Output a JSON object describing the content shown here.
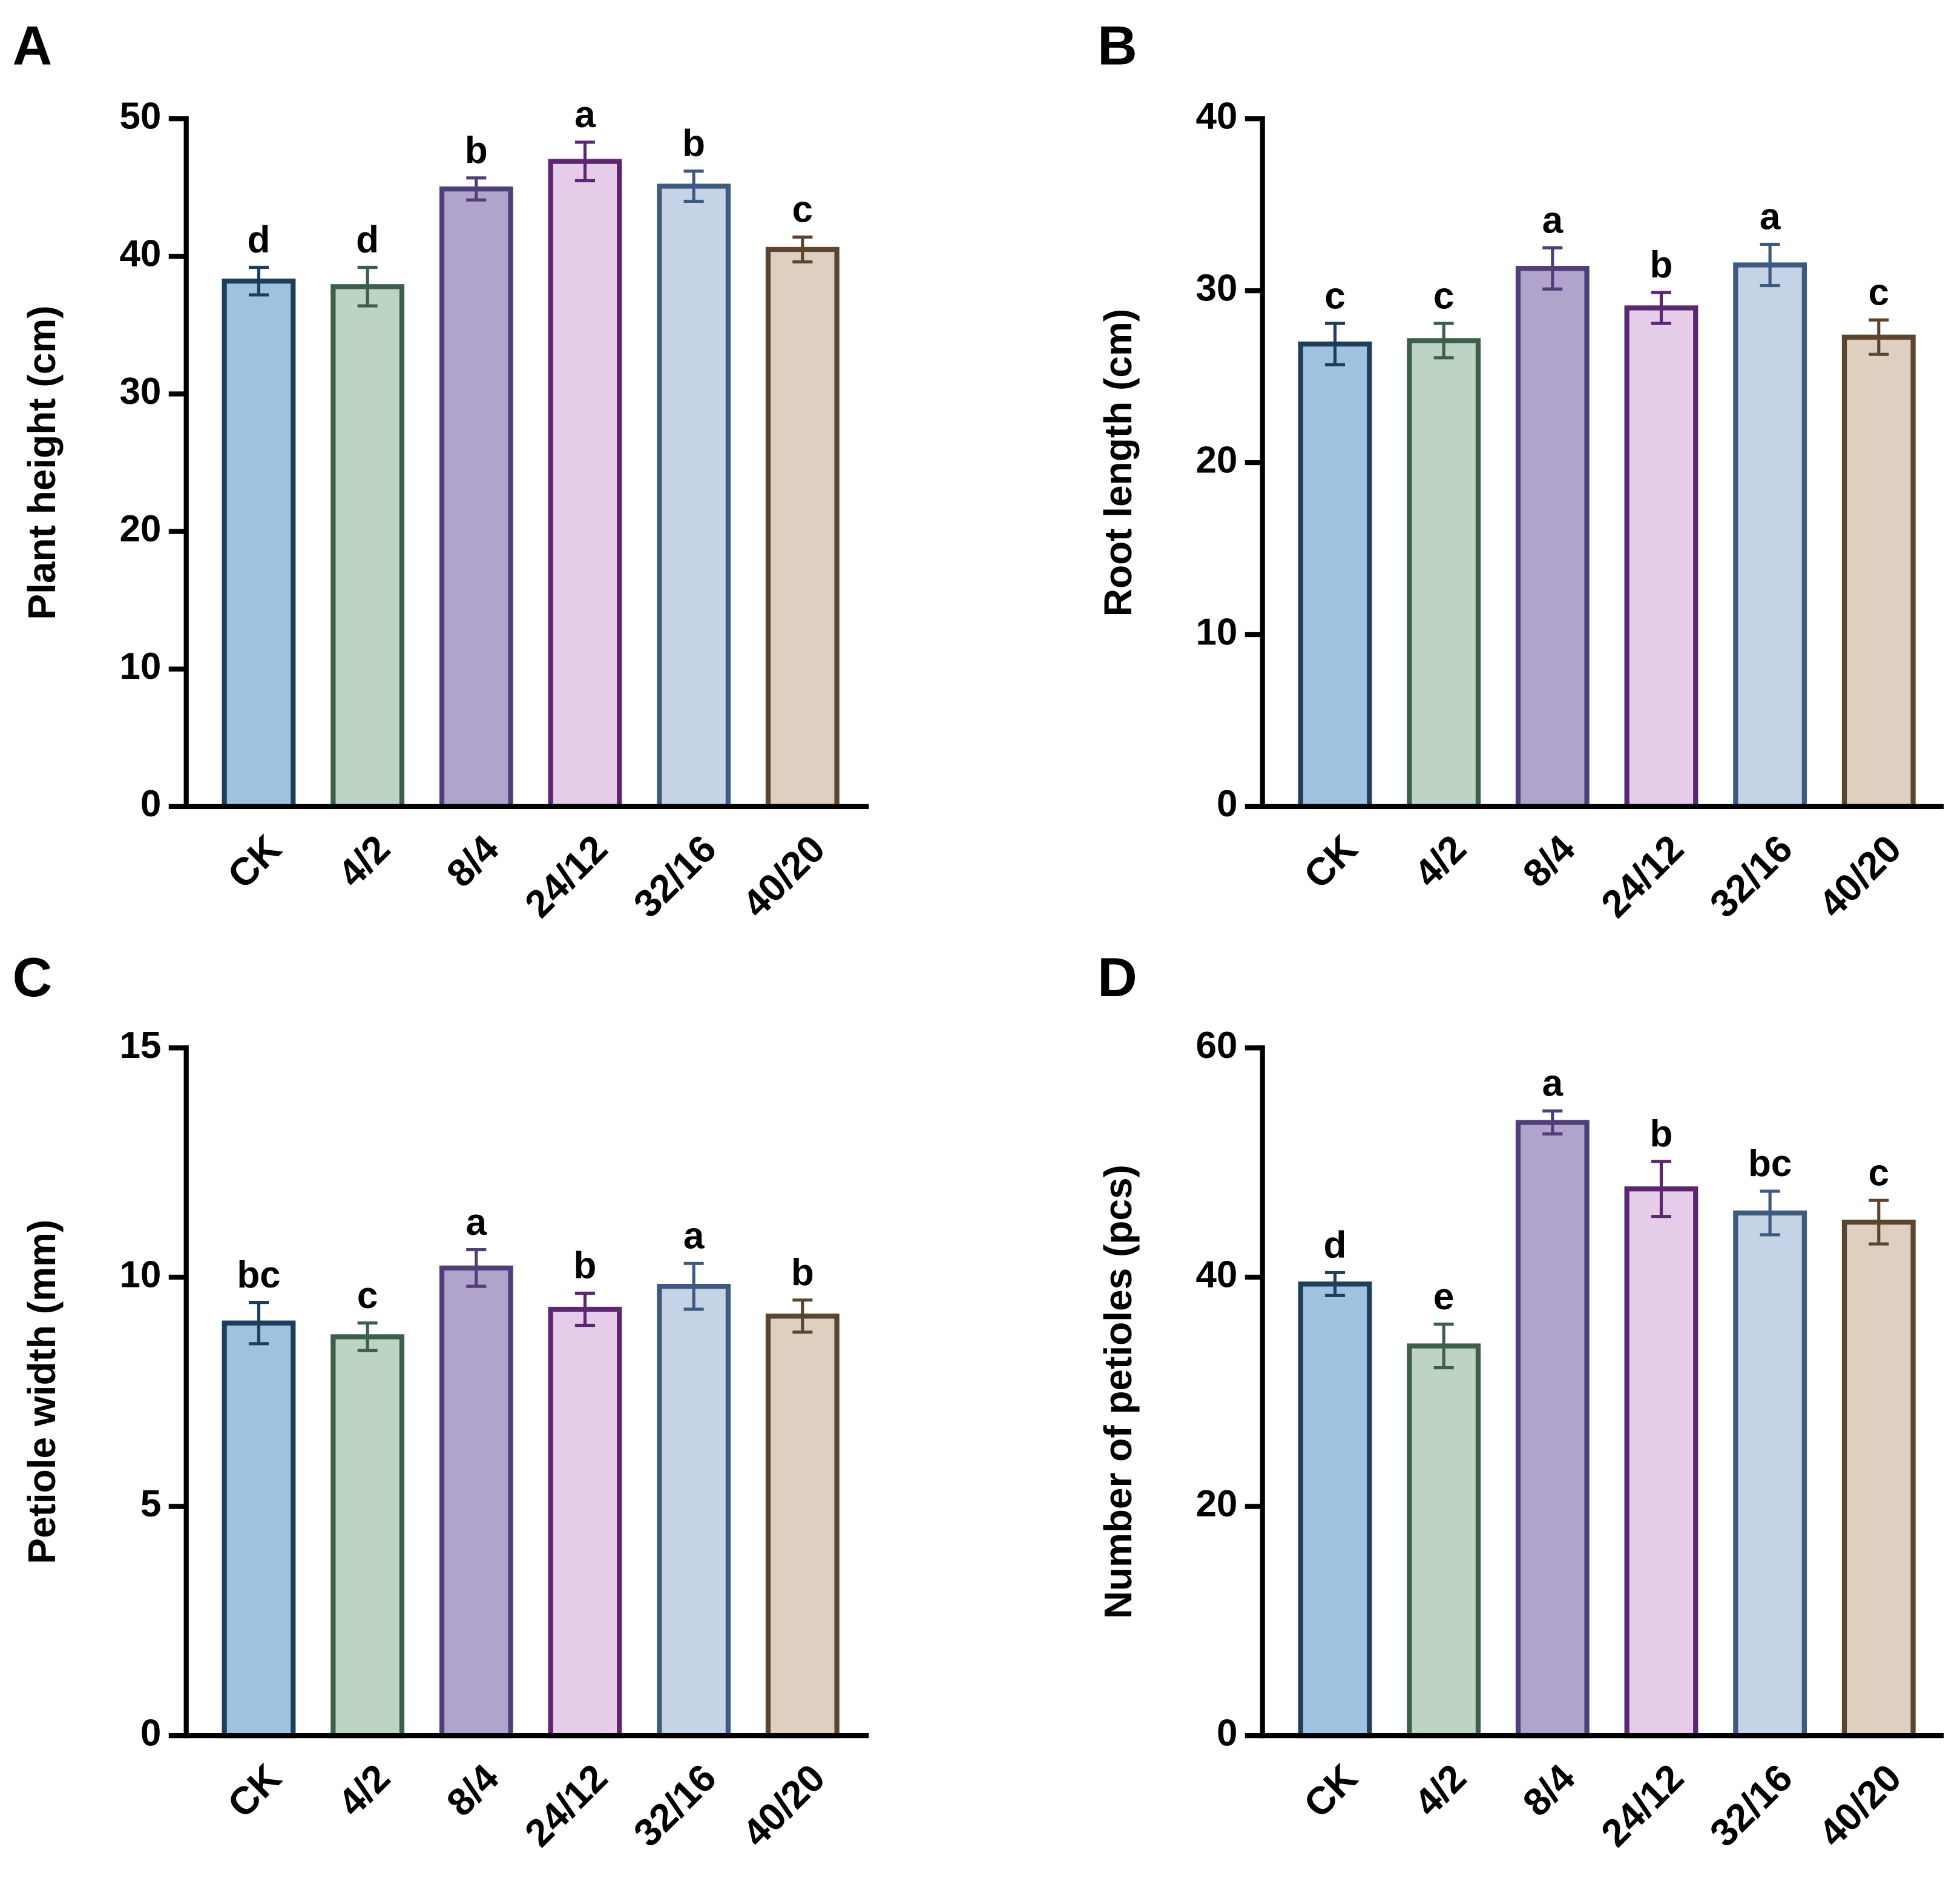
{
  "chart_data": [
    {
      "type": "bar",
      "panel": "A",
      "y_label": "Plant height (cm)",
      "categories": [
        "CK",
        "4/2",
        "8/4",
        "24/12",
        "32/16",
        "40/20"
      ],
      "values": [
        38.2,
        37.8,
        44.9,
        46.9,
        45.1,
        40.5
      ],
      "errors": [
        1.0,
        1.4,
        0.8,
        1.4,
        1.1,
        0.9
      ],
      "annotations": [
        "d",
        "d",
        "b",
        "a",
        "b",
        "c"
      ],
      "colors": [
        "#9fc2e0",
        "#bdd3c4",
        "#b0a3cc",
        "#e5cdea",
        "#c4d3e6",
        "#dfcfc0"
      ],
      "edge_colors": [
        "#1f3d5c",
        "#3d5e4a",
        "#4f3f78",
        "#5c2670",
        "#3f5a80",
        "#5c4530"
      ],
      "ylim": [
        0,
        50
      ],
      "yticks": [
        0,
        10,
        20,
        30,
        40,
        50
      ]
    },
    {
      "type": "bar",
      "panel": "B",
      "y_label": "Root length (cm)",
      "categories": [
        "CK",
        "4/2",
        "8/4",
        "24/12",
        "32/16",
        "40/20"
      ],
      "values": [
        26.9,
        27.1,
        31.3,
        29.0,
        31.5,
        27.3
      ],
      "errors": [
        1.2,
        1.0,
        1.2,
        0.9,
        1.2,
        1.0
      ],
      "annotations": [
        "c",
        "c",
        "a",
        "b",
        "a",
        "c"
      ],
      "colors": [
        "#9fc2e0",
        "#bdd3c4",
        "#b0a3cc",
        "#e5cdea",
        "#c4d3e6",
        "#dfcfc0"
      ],
      "edge_colors": [
        "#1f3d5c",
        "#3d5e4a",
        "#4f3f78",
        "#5c2670",
        "#3f5a80",
        "#5c4530"
      ],
      "ylim": [
        0,
        40
      ],
      "yticks": [
        0,
        10,
        20,
        30,
        40
      ]
    },
    {
      "type": "bar",
      "panel": "C",
      "y_label": "Petiole width (mm)",
      "categories": [
        "CK",
        "4/2",
        "8/4",
        "24/12",
        "32/16",
        "40/20"
      ],
      "values": [
        9.0,
        8.7,
        10.2,
        9.3,
        9.8,
        9.15
      ],
      "errors": [
        0.45,
        0.3,
        0.4,
        0.35,
        0.5,
        0.35
      ],
      "annotations": [
        "bc",
        "c",
        "a",
        "b",
        "a",
        "b"
      ],
      "colors": [
        "#9fc2e0",
        "#bdd3c4",
        "#b0a3cc",
        "#e5cdea",
        "#c4d3e6",
        "#dfcfc0"
      ],
      "edge_colors": [
        "#1f3d5c",
        "#3d5e4a",
        "#4f3f78",
        "#5c2670",
        "#3f5a80",
        "#5c4530"
      ],
      "ylim": [
        0,
        15
      ],
      "yticks": [
        0,
        5,
        10,
        15
      ]
    },
    {
      "type": "bar",
      "panel": "D",
      "y_label": "Number of petioles (pcs)",
      "categories": [
        "CK",
        "4/2",
        "8/4",
        "24/12",
        "32/16",
        "40/20"
      ],
      "values": [
        39.4,
        34.0,
        53.5,
        47.7,
        45.6,
        44.8
      ],
      "errors": [
        1.0,
        1.9,
        1.0,
        2.4,
        1.9,
        1.9
      ],
      "annotations": [
        "d",
        "e",
        "a",
        "b",
        "bc",
        "c"
      ],
      "colors": [
        "#9fc2e0",
        "#bdd3c4",
        "#b0a3cc",
        "#e5cdea",
        "#c4d3e6",
        "#dfcfc0"
      ],
      "edge_colors": [
        "#1f3d5c",
        "#3d5e4a",
        "#4f3f78",
        "#5c2670",
        "#3f5a80",
        "#5c4530"
      ],
      "ylim": [
        0,
        60
      ],
      "yticks": [
        0,
        20,
        40,
        60
      ]
    }
  ]
}
